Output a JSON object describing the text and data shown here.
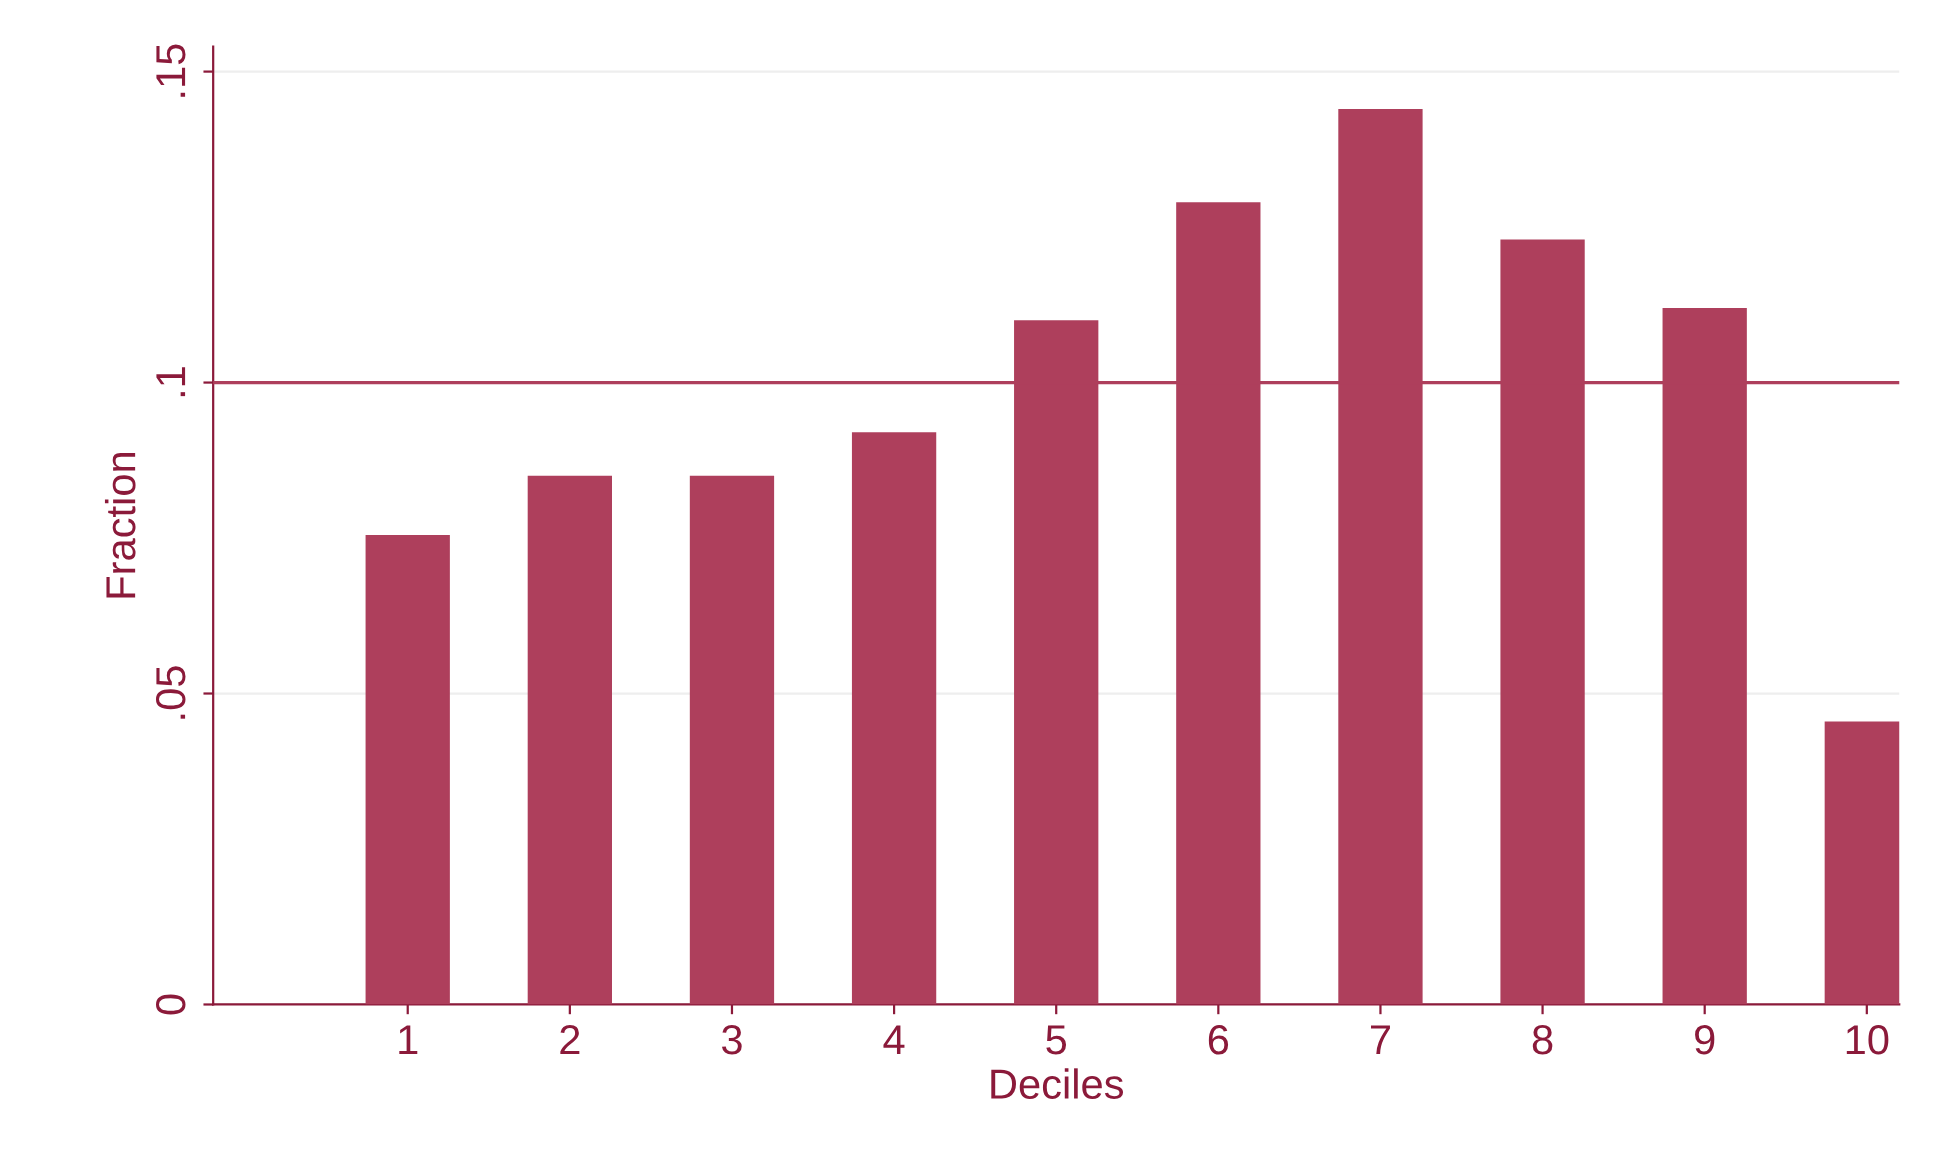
{
  "chart_data": {
    "type": "bar",
    "xlabel": "Deciles",
    "ylabel": "Fraction",
    "x": [
      1,
      2,
      3,
      4,
      5,
      6,
      7,
      8,
      9,
      10
    ],
    "values": [
      0.0755,
      0.085,
      0.085,
      0.092,
      0.11,
      0.129,
      0.144,
      0.123,
      0.112,
      0.0455
    ],
    "color": "#ae3f5c",
    "xlim": [
      -0.2,
      10.2
    ],
    "xticks": [
      1,
      2,
      3,
      4,
      5,
      6,
      7,
      8,
      9,
      10
    ],
    "ylim": [
      0,
      0.154
    ],
    "yticks": [
      {
        "value": 0,
        "label": "0"
      },
      {
        "value": 0.05,
        "label": ".05"
      },
      {
        "value": 0.1,
        "label": ".1"
      },
      {
        "value": 0.15,
        "label": ".15"
      }
    ],
    "grid": "y",
    "ref_lines": [
      {
        "axis": "y",
        "value": 0.1,
        "color": "#ae3f5c"
      }
    ]
  }
}
